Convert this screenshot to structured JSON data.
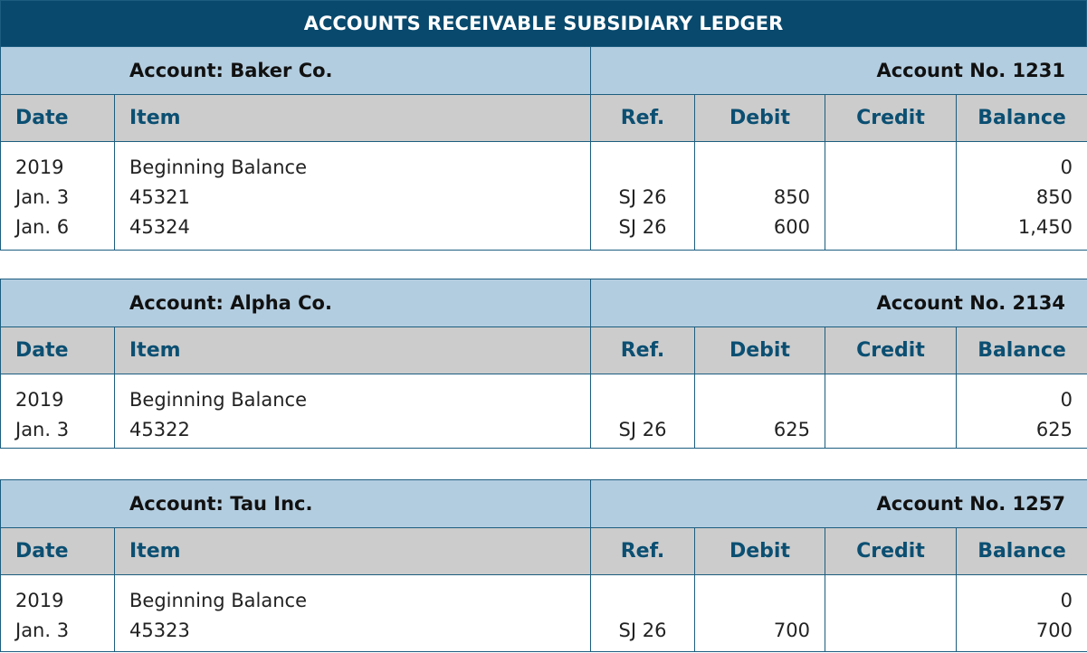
{
  "title": "ACCOUNTS RECEIVABLE SUBSIDIARY LEDGER",
  "columns": {
    "date": "Date",
    "item": "Item",
    "ref": "Ref.",
    "debit": "Debit",
    "credit": "Credit",
    "balance": "Balance"
  },
  "ledgers": [
    {
      "account": "Account: Baker Co.",
      "number": "Account  No. 1231",
      "rows": [
        {
          "date": "2019",
          "item": "Beginning Balance",
          "ref": "",
          "debit": "",
          "credit": "",
          "balance": "0"
        },
        {
          "date": "Jan. 3",
          "item": "45321",
          "ref": "SJ 26",
          "debit": "850",
          "credit": "",
          "balance": "850"
        },
        {
          "date": "Jan. 6",
          "item": "45324",
          "ref": "SJ 26",
          "debit": "600",
          "credit": "",
          "balance": "1,450"
        }
      ]
    },
    {
      "account": "Account: Alpha Co.",
      "number": "Account  No. 2134",
      "rows": [
        {
          "date": "2019",
          "item": "Beginning Balance",
          "ref": "",
          "debit": "",
          "credit": "",
          "balance": "0"
        },
        {
          "date": "Jan. 3",
          "item": "45322",
          "ref": "SJ 26",
          "debit": "625",
          "credit": "",
          "balance": "625"
        }
      ]
    },
    {
      "account": "Account: Tau Inc.",
      "number": "Account  No. 1257",
      "rows": [
        {
          "date": "2019",
          "item": "Beginning Balance",
          "ref": "",
          "debit": "",
          "credit": "",
          "balance": "0"
        },
        {
          "date": "Jan. 3",
          "item": "45323",
          "ref": "SJ 26",
          "debit": "700",
          "credit": "",
          "balance": "700"
        }
      ]
    }
  ]
}
